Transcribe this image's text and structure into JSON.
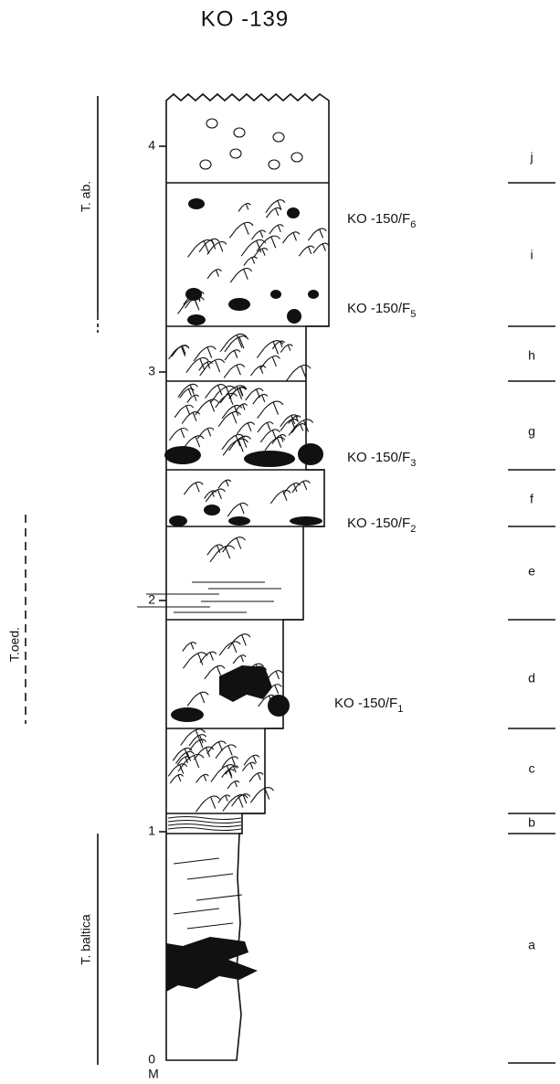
{
  "title": "KO -139",
  "depth_axis": {
    "ticks": [
      "0",
      "1",
      "2",
      "3",
      "4"
    ],
    "unit": "M"
  },
  "zones": [
    "T. ab.",
    "T.oed.",
    "T. baltica"
  ],
  "samples": [
    {
      "label": "KO -150/F",
      "sub": "6"
    },
    {
      "label": "KO -150/F",
      "sub": "5"
    },
    {
      "label": "KO -150/F",
      "sub": "3"
    },
    {
      "label": "KO -150/F",
      "sub": "2"
    },
    {
      "label": "KO -150/F",
      "sub": "1"
    }
  ],
  "layers": [
    "j",
    "i",
    "h",
    "g",
    "f",
    "e",
    "d",
    "c",
    "b",
    "a"
  ]
}
